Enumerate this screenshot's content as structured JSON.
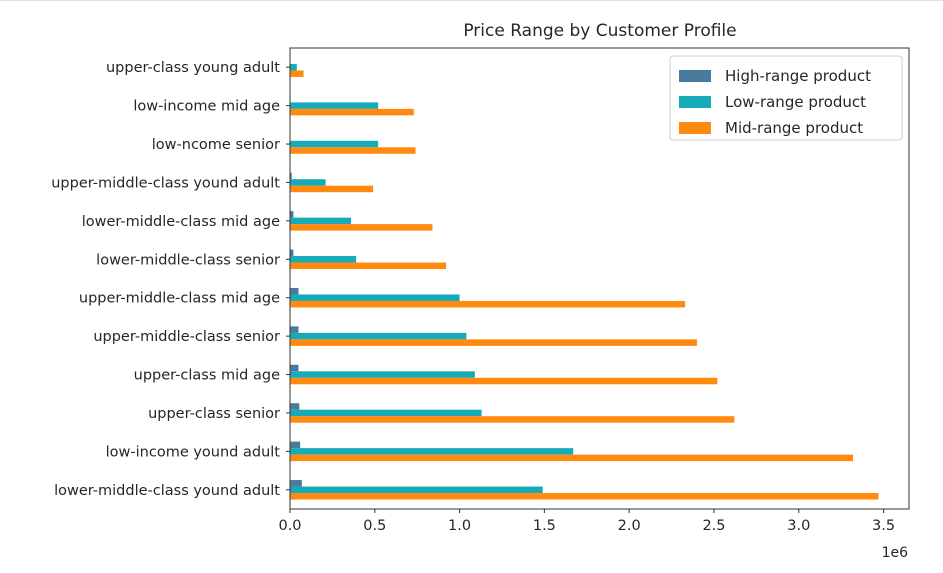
{
  "chart_data": {
    "type": "bar",
    "orientation": "horizontal",
    "title": "Price Range by Customer Profile",
    "xlabel": "",
    "ylabel": "",
    "x_offset_label": "1e6",
    "x_scale": 1000000,
    "xlim": [
      0,
      3.65
    ],
    "x_ticks": [
      0.0,
      0.5,
      1.0,
      1.5,
      2.0,
      2.5,
      3.0,
      3.5
    ],
    "x_tick_labels": [
      "0.0",
      "0.5",
      "1.0",
      "1.5",
      "2.0",
      "2.5",
      "3.0",
      "3.5"
    ],
    "grid": false,
    "legend_position": "top-right",
    "categories": [
      "lower-middle-class yound adult",
      "low-income yound adult",
      "upper-class senior",
      "upper-class mid age",
      "upper-middle-class senior",
      "upper-middle-class mid age",
      "lower-middle-class senior",
      "lower-middle-class mid age",
      "upper-middle-class yound adult",
      "low-ncome senior",
      "low-income mid age",
      "upper-class young adult"
    ],
    "series": [
      {
        "name": "High-range product",
        "color": "#4a7a9c",
        "values": [
          0.07,
          0.06,
          0.055,
          0.05,
          0.05,
          0.05,
          0.02,
          0.02,
          0.01,
          0.002,
          0.002,
          0.002
        ]
      },
      {
        "name": "Low-range product",
        "color": "#17aab8",
        "values": [
          1.49,
          1.67,
          1.13,
          1.09,
          1.04,
          1.0,
          0.39,
          0.36,
          0.21,
          0.52,
          0.52,
          0.04
        ]
      },
      {
        "name": "Mid-range product",
        "color": "#ff8a0f",
        "values": [
          3.47,
          3.32,
          2.62,
          2.52,
          2.4,
          2.33,
          0.92,
          0.84,
          0.49,
          0.74,
          0.73,
          0.08
        ]
      }
    ]
  }
}
